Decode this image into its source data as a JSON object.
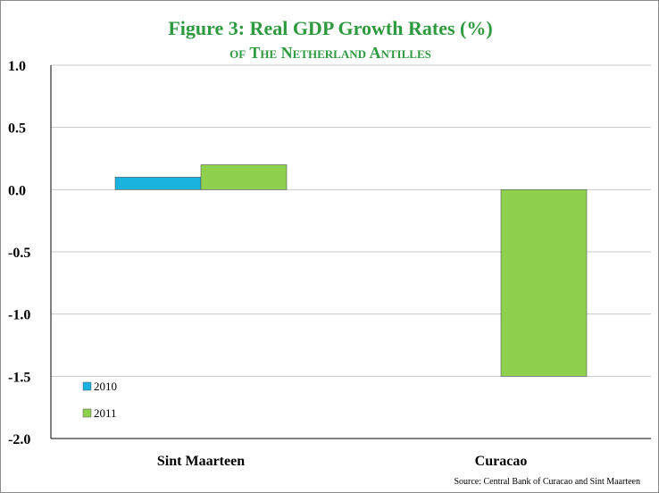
{
  "chart_data": {
    "type": "bar",
    "title": "Figure 3: Real GDP Growth Rates (%)",
    "subtitle": "of The Netherland Antilles",
    "categories": [
      "Sint Maarteen",
      "Curacao"
    ],
    "series": [
      {
        "name": "2010",
        "values": [
          0.1,
          null
        ],
        "color": "#1ab3e0"
      },
      {
        "name": "2011",
        "values": [
          0.2,
          -1.5
        ],
        "color": "#8fd14f"
      }
    ],
    "ylim": [
      -2.0,
      1.0
    ],
    "yticks": [
      "1.0",
      "0.5",
      "0.0",
      "-0.5",
      "-1.0",
      "-1.5",
      "-2.0"
    ],
    "ytick_values": [
      1.0,
      0.5,
      0.0,
      -0.5,
      -1.0,
      -1.5,
      -2.0
    ],
    "grid": true,
    "legend_position": "bottom-left"
  },
  "source": "Source:  Central Bank of Curacao and Sint Maarteen"
}
